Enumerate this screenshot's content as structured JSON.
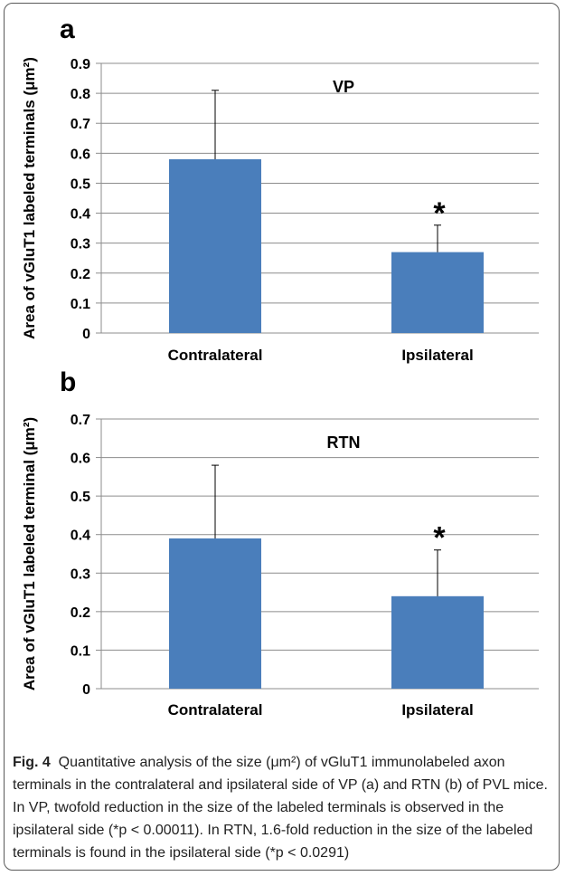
{
  "chart_data": [
    {
      "type": "bar",
      "panel": "a",
      "title": "VP",
      "ylabel": "Area of vGluT1 labeled terminals (μm²)",
      "categories": [
        "Contralateral",
        "Ipsilateral"
      ],
      "values": [
        0.58,
        0.27
      ],
      "errors": [
        0.23,
        0.09
      ],
      "annotations": [
        "",
        "*"
      ],
      "ylim": [
        0,
        0.9
      ],
      "yticks": [
        "0",
        "0.1",
        "0.2",
        "0.3",
        "0.4",
        "0.5",
        "0.6",
        "0.7",
        "0.8",
        "0.9"
      ],
      "grid": true,
      "bar_color": "#4a7ebb"
    },
    {
      "type": "bar",
      "panel": "b",
      "title": "RTN",
      "ylabel": "Area of vGluT1 labeled terminal (μm²)",
      "categories": [
        "Contralateral",
        "Ipsilateral"
      ],
      "values": [
        0.39,
        0.24
      ],
      "errors": [
        0.19,
        0.12
      ],
      "annotations": [
        "",
        "*"
      ],
      "ylim": [
        0,
        0.7
      ],
      "yticks": [
        "0",
        "0.1",
        "0.2",
        "0.3",
        "0.4",
        "0.5",
        "0.6",
        "0.7"
      ],
      "grid": true,
      "bar_color": "#4a7ebb"
    }
  ],
  "caption": {
    "label": "Fig. 4",
    "text": "Quantitative analysis of the size (μm²) of vGluT1 immunolabeled axon terminals in the contralateral and ipsilateral side of VP (a) and RTN (b) of PVL mice. In VP, twofold reduction in the size of the labeled terminals is observed in the ipsilateral side (*p < 0.00011). In RTN, 1.6-fold reduction in the size of the labeled terminals is found in the ipsilateral side (*p < 0.0291)"
  }
}
